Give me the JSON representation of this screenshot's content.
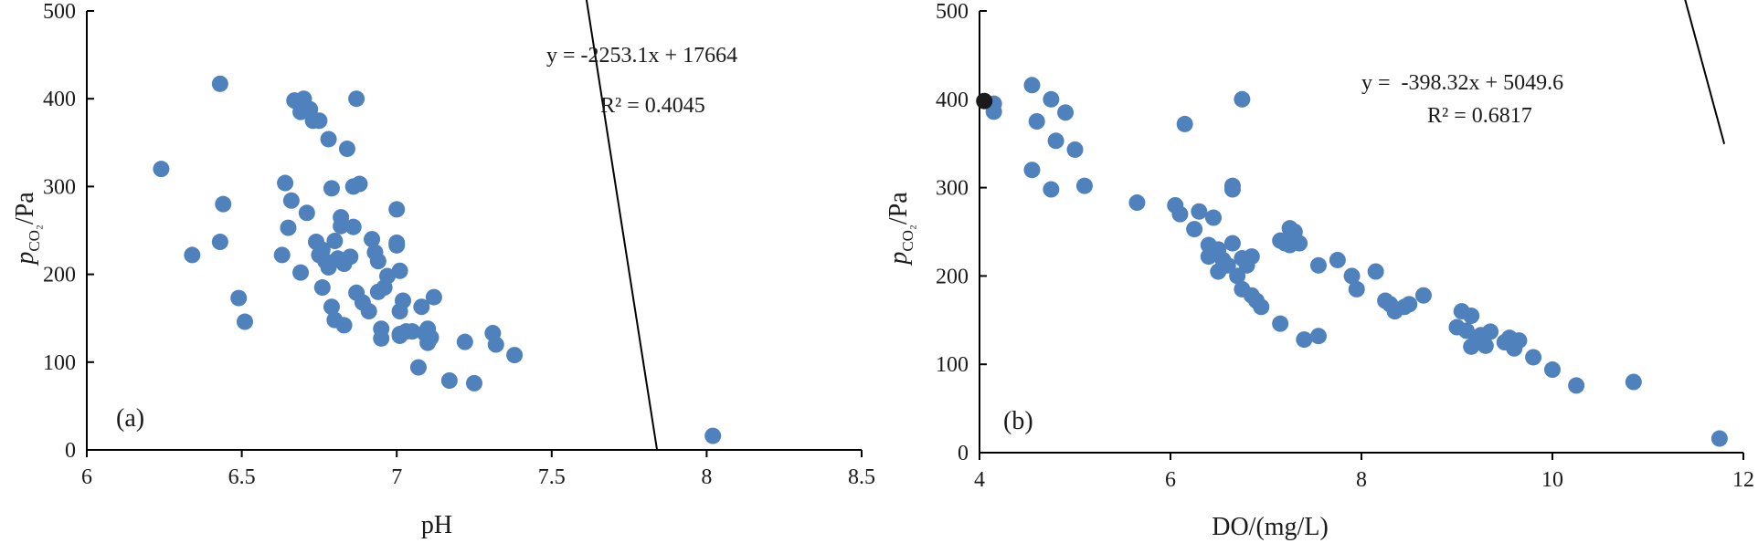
{
  "colors": {
    "point": "#4f81bd",
    "highlight": "#1a1a1a",
    "axis": "#000000"
  },
  "chart_data": [
    {
      "type": "scatter",
      "panel_label": "(a)",
      "xlabel": "pH",
      "ylabel": {
        "main": "p",
        "sub": "CO₂",
        "unit": "/Pa"
      },
      "xlim": [
        6,
        8.5
      ],
      "ylim": [
        0,
        500
      ],
      "xticks": [
        6,
        6.5,
        7,
        7.5,
        8,
        8.5
      ],
      "xtick_labels": [
        "6",
        "6.5",
        "7",
        "7.5",
        "8",
        "8.5"
      ],
      "yticks": [
        0,
        100,
        200,
        300,
        400,
        500
      ],
      "ytick_labels": [
        "0",
        "100",
        "200",
        "300",
        "400",
        "500"
      ],
      "equation": "y = -2253.1x + 17664",
      "r_squared": "R² = 0.4045",
      "trendline": {
        "slope": -2253.1,
        "intercept": 17664,
        "x_range": [
          6.24,
          7.84
        ]
      },
      "points": [
        [
          6.24,
          320
        ],
        [
          6.34,
          222
        ],
        [
          6.43,
          417
        ],
        [
          6.43,
          237
        ],
        [
          6.44,
          280
        ],
        [
          6.49,
          173
        ],
        [
          6.51,
          146
        ],
        [
          6.63,
          222
        ],
        [
          6.64,
          304
        ],
        [
          6.65,
          253
        ],
        [
          6.66,
          284
        ],
        [
          6.67,
          398
        ],
        [
          6.69,
          202
        ],
        [
          6.69,
          385
        ],
        [
          6.7,
          400
        ],
        [
          6.71,
          270
        ],
        [
          6.72,
          388
        ],
        [
          6.73,
          375
        ],
        [
          6.74,
          237
        ],
        [
          6.75,
          375
        ],
        [
          6.75,
          222
        ],
        [
          6.76,
          185
        ],
        [
          6.76,
          228
        ],
        [
          6.77,
          215
        ],
        [
          6.78,
          354
        ],
        [
          6.78,
          208
        ],
        [
          6.79,
          298
        ],
        [
          6.79,
          163
        ],
        [
          6.8,
          148
        ],
        [
          6.8,
          238
        ],
        [
          6.81,
          218
        ],
        [
          6.82,
          265
        ],
        [
          6.82,
          255
        ],
        [
          6.83,
          212
        ],
        [
          6.83,
          142
        ],
        [
          6.84,
          343
        ],
        [
          6.85,
          220
        ],
        [
          6.86,
          300
        ],
        [
          6.86,
          254
        ],
        [
          6.87,
          400
        ],
        [
          6.87,
          179
        ],
        [
          6.88,
          303
        ],
        [
          6.89,
          168
        ],
        [
          6.91,
          158
        ],
        [
          6.92,
          240
        ],
        [
          6.93,
          225
        ],
        [
          6.94,
          215
        ],
        [
          6.94,
          180
        ],
        [
          6.95,
          138
        ],
        [
          6.95,
          127
        ],
        [
          6.96,
          185
        ],
        [
          6.97,
          198
        ],
        [
          7.0,
          274
        ],
        [
          7.0,
          236
        ],
        [
          7.0,
          233
        ],
        [
          7.01,
          204
        ],
        [
          7.01,
          158
        ],
        [
          7.01,
          132
        ],
        [
          7.01,
          130
        ],
        [
          7.02,
          170
        ],
        [
          7.03,
          135
        ],
        [
          7.05,
          135
        ],
        [
          7.07,
          94
        ],
        [
          7.08,
          163
        ],
        [
          7.09,
          133
        ],
        [
          7.1,
          122
        ],
        [
          7.1,
          138
        ],
        [
          7.11,
          128
        ],
        [
          7.12,
          174
        ],
        [
          7.17,
          79
        ],
        [
          7.22,
          123
        ],
        [
          7.25,
          76
        ],
        [
          7.31,
          133
        ],
        [
          7.32,
          120
        ],
        [
          7.38,
          108
        ],
        [
          8.02,
          16
        ]
      ]
    },
    {
      "type": "scatter",
      "panel_label": "(b)",
      "xlabel": "DO/(mg/L)",
      "ylabel": {
        "main": "p",
        "sub": "CO₂",
        "unit": "/Pa"
      },
      "xlim": [
        4,
        12
      ],
      "ylim": [
        0,
        500
      ],
      "xticks": [
        4,
        6,
        8,
        10,
        12
      ],
      "xtick_labels": [
        "4",
        "6",
        "8",
        "10",
        "12"
      ],
      "yticks": [
        0,
        100,
        200,
        300,
        400,
        500
      ],
      "ytick_labels": [
        "0",
        "100",
        "200",
        "300",
        "400",
        "500"
      ],
      "equation": "y =  -398.32x + 5049.6",
      "r_squared": "R² = 0.6817",
      "trendline": {
        "slope": -398.32,
        "intercept": 5049.6,
        "x_range": [
          4.0,
          11.8
        ]
      },
      "highlight_points": [
        [
          4.05,
          398
        ]
      ],
      "points": [
        [
          4.15,
          395
        ],
        [
          4.15,
          386
        ],
        [
          4.55,
          416
        ],
        [
          4.55,
          320
        ],
        [
          4.6,
          375
        ],
        [
          4.75,
          400
        ],
        [
          4.75,
          298
        ],
        [
          4.8,
          353
        ],
        [
          4.9,
          385
        ],
        [
          5.0,
          343
        ],
        [
          5.1,
          302
        ],
        [
          5.65,
          283
        ],
        [
          6.05,
          280
        ],
        [
          6.1,
          270
        ],
        [
          6.15,
          372
        ],
        [
          6.25,
          253
        ],
        [
          6.3,
          273
        ],
        [
          6.4,
          235
        ],
        [
          6.4,
          222
        ],
        [
          6.45,
          266
        ],
        [
          6.5,
          230
        ],
        [
          6.5,
          205
        ],
        [
          6.55,
          218
        ],
        [
          6.6,
          212
        ],
        [
          6.65,
          302
        ],
        [
          6.65,
          298
        ],
        [
          6.65,
          237
        ],
        [
          6.7,
          200
        ],
        [
          6.75,
          220
        ],
        [
          6.75,
          185
        ],
        [
          6.75,
          400
        ],
        [
          6.8,
          212
        ],
        [
          6.85,
          222
        ],
        [
          6.85,
          178
        ],
        [
          6.9,
          172
        ],
        [
          6.95,
          165
        ],
        [
          7.15,
          146
        ],
        [
          7.15,
          240
        ],
        [
          7.2,
          237
        ],
        [
          7.25,
          254
        ],
        [
          7.25,
          235
        ],
        [
          7.3,
          250
        ],
        [
          7.35,
          237
        ],
        [
          7.4,
          128
        ],
        [
          7.55,
          132
        ],
        [
          7.55,
          212
        ],
        [
          7.75,
          218
        ],
        [
          7.9,
          200
        ],
        [
          7.95,
          185
        ],
        [
          8.15,
          205
        ],
        [
          8.25,
          172
        ],
        [
          8.3,
          168
        ],
        [
          8.35,
          160
        ],
        [
          8.45,
          165
        ],
        [
          8.5,
          168
        ],
        [
          8.65,
          178
        ],
        [
          9.0,
          142
        ],
        [
          9.05,
          160
        ],
        [
          9.1,
          138
        ],
        [
          9.15,
          155
        ],
        [
          9.15,
          120
        ],
        [
          9.2,
          125
        ],
        [
          9.25,
          133
        ],
        [
          9.3,
          121
        ],
        [
          9.35,
          137
        ],
        [
          9.5,
          125
        ],
        [
          9.55,
          130
        ],
        [
          9.6,
          118
        ],
        [
          9.65,
          127
        ],
        [
          9.8,
          108
        ],
        [
          10.0,
          94
        ],
        [
          10.25,
          76
        ],
        [
          10.85,
          80
        ],
        [
          11.75,
          16
        ]
      ]
    }
  ]
}
